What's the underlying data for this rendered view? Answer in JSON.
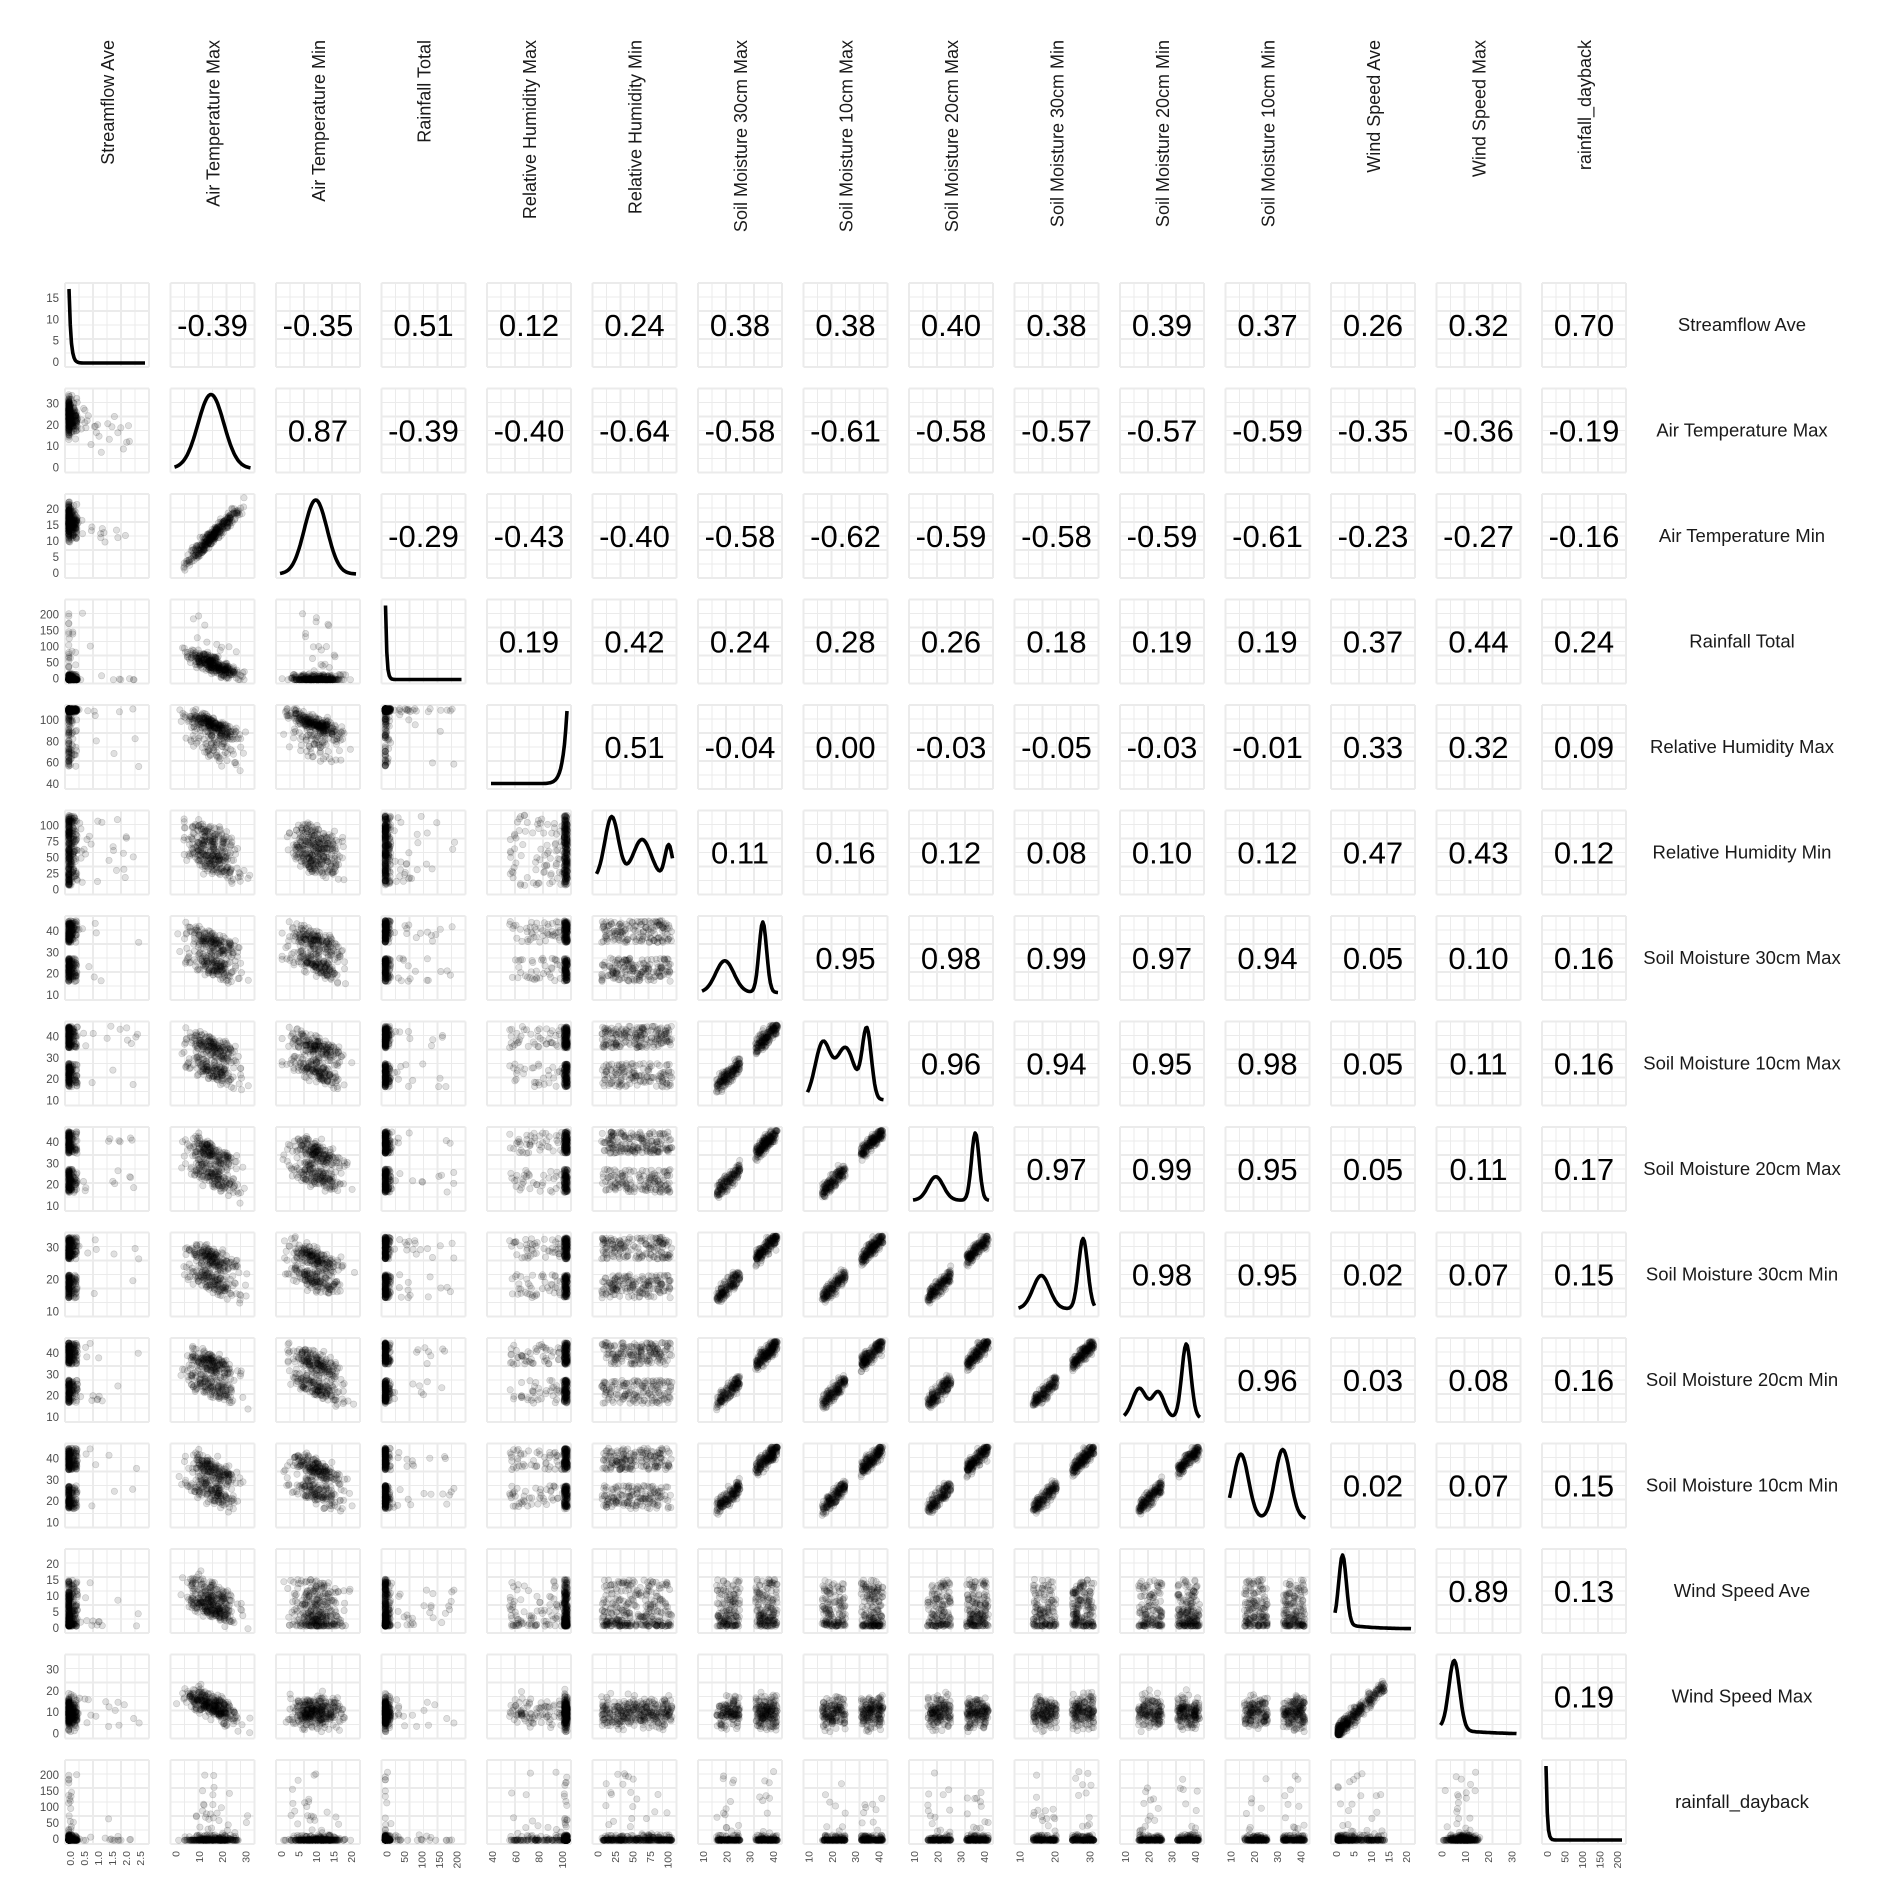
{
  "chart_data": {
    "type": "scatter",
    "title": "",
    "variables": [
      "Streamflow Ave",
      "Air Temperature Max",
      "Air Temperature Min",
      "Rainfall Total",
      "Relative Humidity Max",
      "Relative Humidity Min",
      "Soil Moisture 30cm Max",
      "Soil Moisture 10cm Max",
      "Soil Moisture 20cm Max",
      "Soil Moisture 30cm Min",
      "Soil Moisture 20cm Min",
      "Soil Moisture 10cm Min",
      "Wind Speed Ave",
      "Wind Speed Max",
      "rainfall_dayback"
    ],
    "correlation_labels": [
      [
        "",
        "-0.39",
        "-0.35",
        "0.51",
        "0.12",
        "0.24",
        "0.38",
        "0.38",
        "0.40",
        "0.38",
        "0.39",
        "0.37",
        "0.26",
        "0.32",
        "0.70"
      ],
      [
        "",
        "",
        "0.87",
        "-0.39",
        "-0.40",
        "-0.64",
        "-0.58",
        "-0.61",
        "-0.58",
        "-0.57",
        "-0.57",
        "-0.59",
        "-0.35",
        "-0.36",
        "-0.19"
      ],
      [
        "",
        "",
        "",
        "-0.29",
        "-0.43",
        "-0.40",
        "-0.58",
        "-0.62",
        "-0.59",
        "-0.58",
        "-0.59",
        "-0.61",
        "-0.23",
        "-0.27",
        "-0.16"
      ],
      [
        "",
        "",
        "",
        "",
        "0.19",
        "0.42",
        "0.24",
        "0.28",
        "0.26",
        "0.18",
        "0.19",
        "0.19",
        "0.37",
        "0.44",
        "0.24"
      ],
      [
        "",
        "",
        "",
        "",
        "",
        "0.51",
        "-0.04",
        "0.00",
        "-0.03",
        "-0.05",
        "-0.03",
        "-0.01",
        "0.33",
        "0.32",
        "0.09"
      ],
      [
        "",
        "",
        "",
        "",
        "",
        "",
        "0.11",
        "0.16",
        "0.12",
        "0.08",
        "0.10",
        "0.12",
        "0.47",
        "0.43",
        "0.12"
      ],
      [
        "",
        "",
        "",
        "",
        "",
        "",
        "",
        "0.95",
        "0.98",
        "0.99",
        "0.97",
        "0.94",
        "0.05",
        "0.10",
        "0.16"
      ],
      [
        "",
        "",
        "",
        "",
        "",
        "",
        "",
        "",
        "0.96",
        "0.94",
        "0.95",
        "0.98",
        "0.05",
        "0.11",
        "0.16"
      ],
      [
        "",
        "",
        "",
        "",
        "",
        "",
        "",
        "",
        "",
        "0.97",
        "0.99",
        "0.95",
        "0.05",
        "0.11",
        "0.17"
      ],
      [
        "",
        "",
        "",
        "",
        "",
        "",
        "",
        "",
        "",
        "",
        "0.98",
        "0.95",
        "0.02",
        "0.07",
        "0.15"
      ],
      [
        "",
        "",
        "",
        "",
        "",
        "",
        "",
        "",
        "",
        "",
        "",
        "0.96",
        "0.03",
        "0.08",
        "0.16"
      ],
      [
        "",
        "",
        "",
        "",
        "",
        "",
        "",
        "",
        "",
        "",
        "",
        "",
        "0.02",
        "0.07",
        "0.15"
      ],
      [
        "",
        "",
        "",
        "",
        "",
        "",
        "",
        "",
        "",
        "",
        "",
        "",
        "",
        "0.89",
        "0.13"
      ],
      [
        "",
        "",
        "",
        "",
        "",
        "",
        "",
        "",
        "",
        "",
        "",
        "",
        "",
        "",
        "0.19"
      ],
      [
        "",
        "",
        "",
        "",
        "",
        "",
        "",
        "",
        "",
        "",
        "",
        "",
        "",
        "",
        ""
      ]
    ],
    "y_ticks": [
      [
        "0",
        "5",
        "10",
        "15"
      ],
      [
        "0",
        "10",
        "20",
        "30"
      ],
      [
        "0",
        "5",
        "10",
        "15",
        "20"
      ],
      [
        "0",
        "50",
        "100",
        "150",
        "200"
      ],
      [
        "40",
        "60",
        "80",
        "100"
      ],
      [
        "0",
        "25",
        "50",
        "75",
        "100"
      ],
      [
        "10",
        "20",
        "30",
        "40"
      ],
      [
        "10",
        "20",
        "30",
        "40"
      ],
      [
        "10",
        "20",
        "30",
        "40"
      ],
      [
        "10",
        "20",
        "30"
      ],
      [
        "10",
        "20",
        "30",
        "40"
      ],
      [
        "10",
        "20",
        "30",
        "40"
      ],
      [
        "0",
        "5",
        "10",
        "15",
        "20"
      ],
      [
        "0",
        "10",
        "20",
        "30"
      ],
      [
        "0",
        "50",
        "100",
        "150",
        "200"
      ]
    ],
    "x_ticks": [
      [
        "0.0",
        "0.5",
        "1.0",
        "1.5",
        "2.0",
        "2.5"
      ],
      [
        "0",
        "10",
        "20",
        "30"
      ],
      [
        "0",
        "5",
        "10",
        "15",
        "20"
      ],
      [
        "0",
        "50",
        "100",
        "150",
        "200"
      ],
      [
        "40",
        "60",
        "80",
        "100"
      ],
      [
        "0",
        "25",
        "50",
        "75",
        "100"
      ],
      [
        "10",
        "20",
        "30",
        "40"
      ],
      [
        "10",
        "20",
        "30",
        "40"
      ],
      [
        "10",
        "20",
        "30",
        "40"
      ],
      [
        "10",
        "20",
        "30"
      ],
      [
        "10",
        "20",
        "30",
        "40"
      ],
      [
        "10",
        "20",
        "30",
        "40"
      ],
      [
        "0",
        "5",
        "10",
        "15",
        "20"
      ],
      [
        "0",
        "10",
        "20",
        "30"
      ],
      [
        "0",
        "50",
        "100",
        "150",
        "200"
      ]
    ],
    "grid": true,
    "point_color": "#000000",
    "grid_color": "#ebebeb",
    "panel_color": "#ffffff"
  }
}
